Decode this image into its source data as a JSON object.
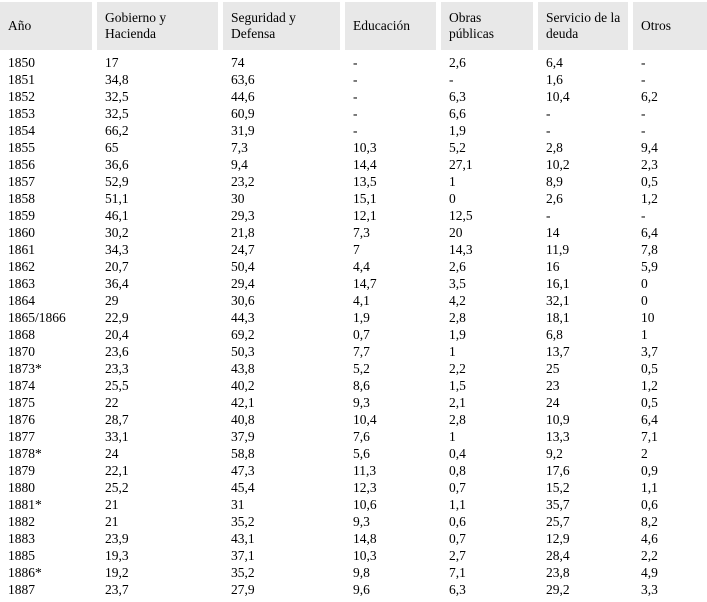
{
  "colors": {
    "header_bg": "#e8e8e8",
    "text": "#000000",
    "background": "#ffffff"
  },
  "table": {
    "columns": [
      "Año",
      "Gobierno y Hacienda",
      "Seguridad y Defensa",
      "Educación",
      "Obras públicas",
      "Servicio de la deuda",
      "Otros"
    ],
    "rows": [
      [
        "1850",
        "17",
        "74",
        "-",
        "2,6",
        "6,4",
        "-"
      ],
      [
        "1851",
        "34,8",
        "63,6",
        "-",
        "-",
        "1,6",
        "-"
      ],
      [
        "1852",
        "32,5",
        "44,6",
        "-",
        "6,3",
        "10,4",
        "6,2"
      ],
      [
        "1853",
        "32,5",
        "60,9",
        "-",
        "6,6",
        "-",
        "-"
      ],
      [
        "1854",
        "66,2",
        "31,9",
        "-",
        "1,9",
        "-",
        "-"
      ],
      [
        "1855",
        "65",
        "7,3",
        "10,3",
        "5,2",
        "2,8",
        "9,4"
      ],
      [
        "1856",
        "36,6",
        "9,4",
        "14,4",
        "27,1",
        "10,2",
        "2,3"
      ],
      [
        "1857",
        "52,9",
        "23,2",
        "13,5",
        "1",
        "8,9",
        "0,5"
      ],
      [
        "1858",
        "51,1",
        "30",
        "15,1",
        "0",
        "2,6",
        "1,2"
      ],
      [
        "1859",
        "46,1",
        "29,3",
        "12,1",
        "12,5",
        "-",
        "-"
      ],
      [
        "1860",
        "30,2",
        "21,8",
        "7,3",
        "20",
        "14",
        "6,4"
      ],
      [
        "1861",
        "34,3",
        "24,7",
        "7",
        "14,3",
        "11,9",
        "7,8"
      ],
      [
        "1862",
        "20,7",
        "50,4",
        "4,4",
        "2,6",
        "16",
        "5,9"
      ],
      [
        "1863",
        "36,4",
        "29,4",
        "14,7",
        "3,5",
        "16,1",
        "0"
      ],
      [
        "1864",
        "29",
        "30,6",
        "4,1",
        "4,2",
        "32,1",
        "0"
      ],
      [
        "1865/1866",
        "22,9",
        "44,3",
        "1,9",
        "2,8",
        "18,1",
        "10"
      ],
      [
        "1868",
        "20,4",
        "69,2",
        "0,7",
        "1,9",
        "6,8",
        "1"
      ],
      [
        "1870",
        "23,6",
        "50,3",
        "7,7",
        "1",
        "13,7",
        "3,7"
      ],
      [
        "1873*",
        "23,3",
        "43,8",
        "5,2",
        "2,2",
        "25",
        "0,5"
      ],
      [
        "1874",
        "25,5",
        "40,2",
        "8,6",
        "1,5",
        "23",
        "1,2"
      ],
      [
        "1875",
        "22",
        "42,1",
        "9,3",
        "2,1",
        "24",
        "0,5"
      ],
      [
        "1876",
        "28,7",
        "40,8",
        "10,4",
        "2,8",
        "10,9",
        "6,4"
      ],
      [
        "1877",
        "33,1",
        "37,9",
        "7,6",
        "1",
        "13,3",
        "7,1"
      ],
      [
        "1878*",
        "24",
        "58,8",
        "5,6",
        "0,4",
        "9,2",
        "2"
      ],
      [
        "1879",
        "22,1",
        "47,3",
        "11,3",
        "0,8",
        "17,6",
        "0,9"
      ],
      [
        "1880",
        "25,2",
        "45,4",
        "12,3",
        "0,7",
        "15,2",
        "1,1"
      ],
      [
        "1881*",
        "21",
        "31",
        "10,6",
        "1,1",
        "35,7",
        "0,6"
      ],
      [
        "1882",
        "21",
        "35,2",
        "9,3",
        "0,6",
        "25,7",
        "8,2"
      ],
      [
        "1883",
        "23,9",
        "43,1",
        "14,8",
        "0,7",
        "12,9",
        "4,6"
      ],
      [
        "1885",
        "19,3",
        "37,1",
        "10,3",
        "2,7",
        "28,4",
        "2,2"
      ],
      [
        "1886*",
        "19,2",
        "35,2",
        "9,8",
        "7,1",
        "23,8",
        "4,9"
      ],
      [
        "1887",
        "23,7",
        "27,9",
        "9,6",
        "6,3",
        "29,2",
        "3,3"
      ]
    ]
  }
}
